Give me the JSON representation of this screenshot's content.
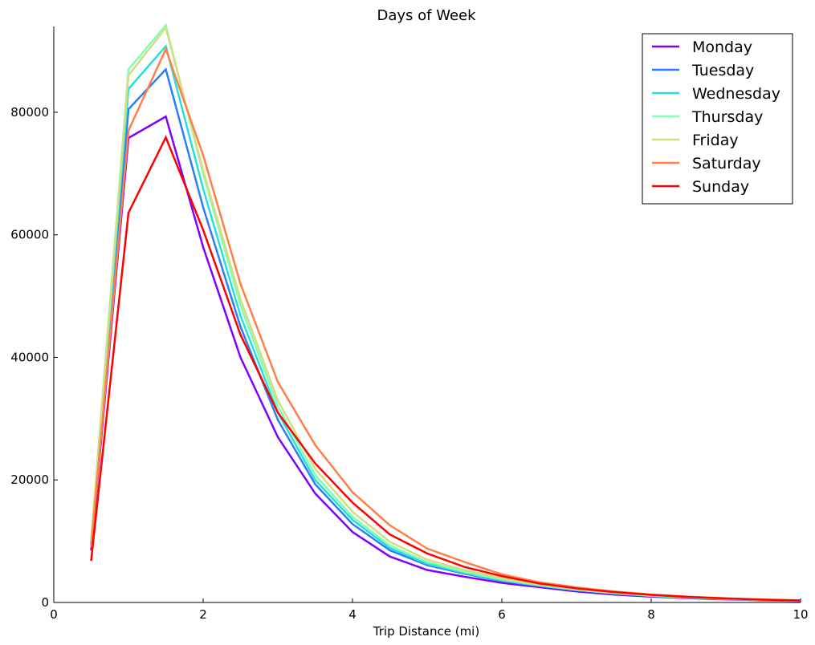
{
  "chart_data": {
    "type": "line",
    "title": "Days of Week",
    "xlabel": "Trip Distance (mi)",
    "ylabel": "",
    "xlim": [
      0,
      10
    ],
    "ylim": [
      0,
      94000
    ],
    "xticks": [
      0,
      2,
      4,
      6,
      8,
      10
    ],
    "yticks": [
      0,
      20000,
      40000,
      60000,
      80000
    ],
    "grid": false,
    "legend_position": "top-right",
    "x": [
      0.5,
      1.0,
      1.5,
      2.0,
      2.5,
      3.0,
      3.5,
      4.0,
      4.5,
      5.0,
      5.5,
      6.0,
      6.5,
      7.0,
      7.5,
      8.0,
      8.5,
      9.0,
      9.5,
      10.0
    ],
    "series": [
      {
        "name": "Monday",
        "color": "#8000ff",
        "values": [
          8500,
          75800,
          79300,
          58000,
          40000,
          27000,
          17800,
          11500,
          7500,
          5300,
          4200,
          3200,
          2500,
          1800,
          1300,
          950,
          700,
          500,
          350,
          250
        ]
      },
      {
        "name": "Tuesday",
        "color": "#2c7ef7",
        "values": [
          9500,
          80500,
          87000,
          64500,
          45000,
          29800,
          19300,
          12800,
          8500,
          6100,
          4700,
          3500,
          2700,
          2000,
          1450,
          1050,
          770,
          560,
          400,
          280
        ]
      },
      {
        "name": "Wednesday",
        "color": "#2adddd",
        "values": [
          9800,
          83800,
          90800,
          67500,
          46800,
          31000,
          20000,
          13500,
          8900,
          6300,
          4800,
          3600,
          2750,
          2050,
          1500,
          1080,
          790,
          575,
          410,
          290
        ]
      },
      {
        "name": "Thursday",
        "color": "#80ffb4",
        "values": [
          10200,
          87000,
          94200,
          70000,
          48500,
          32000,
          20800,
          14000,
          9300,
          6600,
          5000,
          3750,
          2850,
          2100,
          1550,
          1120,
          820,
          590,
          420,
          300
        ]
      },
      {
        "name": "Friday",
        "color": "#d4dd80",
        "values": [
          10000,
          86000,
          93800,
          70500,
          49500,
          33000,
          21800,
          14800,
          9900,
          7000,
          5300,
          3950,
          3000,
          2200,
          1620,
          1170,
          850,
          610,
          430,
          310
        ]
      },
      {
        "name": "Saturday",
        "color": "#ff8047",
        "values": [
          9000,
          77000,
          90300,
          73000,
          52000,
          36000,
          25700,
          18000,
          12600,
          8800,
          6600,
          4600,
          3300,
          2450,
          1800,
          1300,
          950,
          680,
          480,
          340
        ]
      },
      {
        "name": "Sunday",
        "color": "#ff0000",
        "values": [
          6800,
          63600,
          75900,
          60800,
          43700,
          31000,
          22700,
          16300,
          11100,
          8000,
          5800,
          4300,
          3100,
          2300,
          1700,
          1250,
          900,
          650,
          460,
          330
        ]
      }
    ]
  }
}
